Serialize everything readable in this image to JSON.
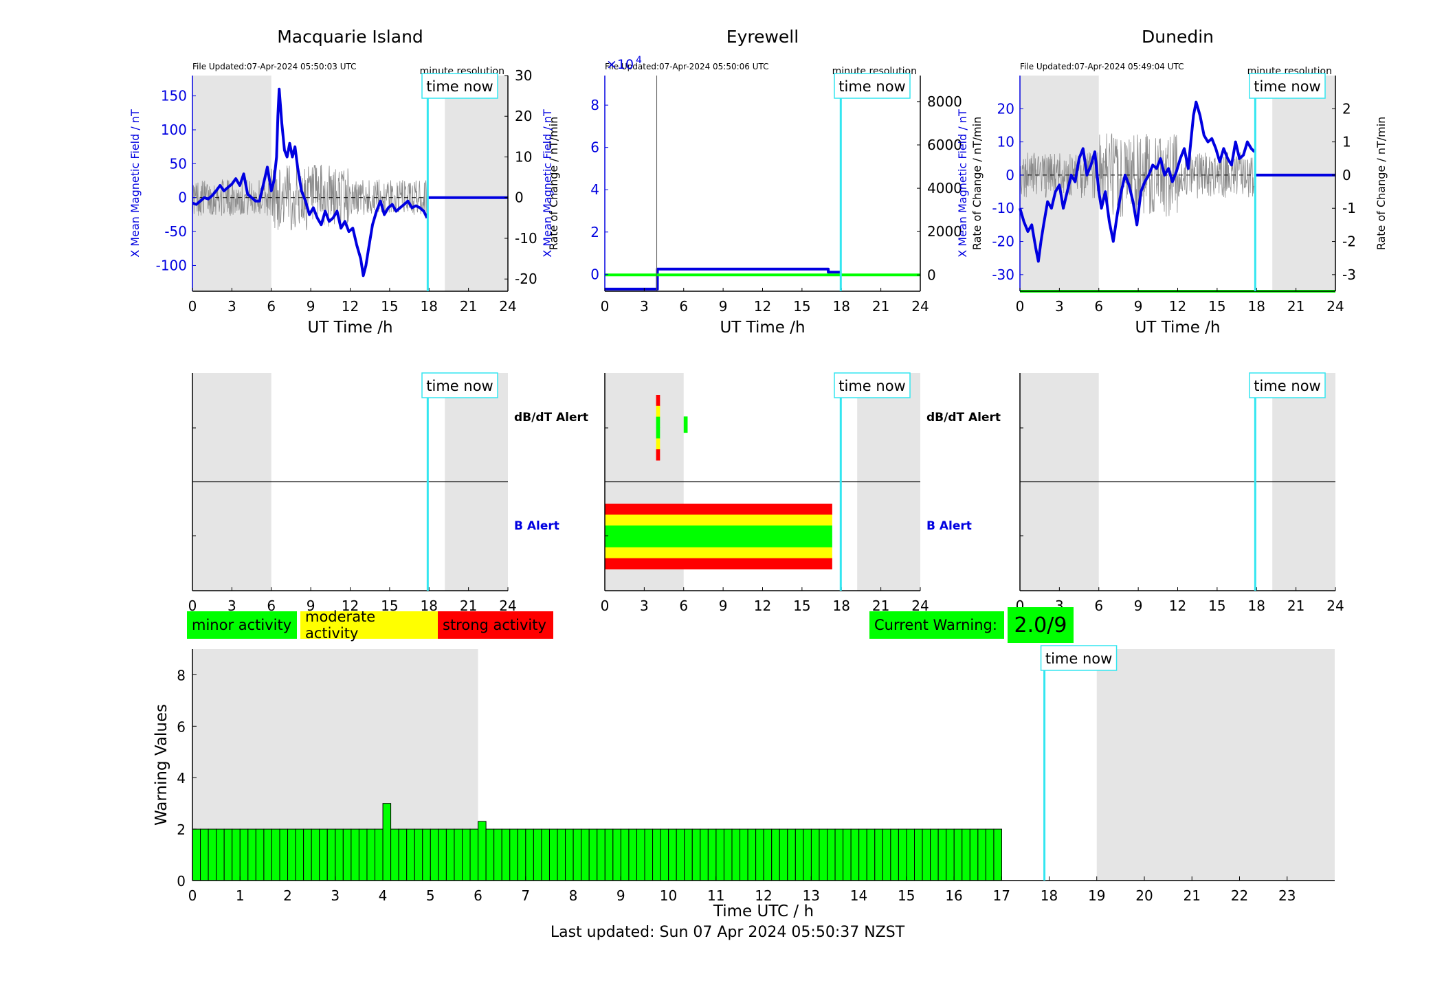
{
  "colors": {
    "blue": "#0000e0",
    "grid_shade": "#e5e5e5",
    "cyan": "#33e6f0",
    "green": "#00ff00",
    "yellow": "#ffff00",
    "red": "#ff0000",
    "gray_trace": "#8a8a8a"
  },
  "common": {
    "time_now_label": "time now",
    "time_now_hour": 17.9,
    "minute_resolution": "minute resolution",
    "x_ticks": [
      "0",
      "3",
      "6",
      "9",
      "12",
      "15",
      "18",
      "21",
      "24"
    ],
    "x_label": "UT Time /h",
    "y_left_label": "X Mean Magnetic Field / nT",
    "y_right_label": "Rate of Change / nT/min",
    "dbdt_label": "dB/dT Alert",
    "b_label": "B Alert"
  },
  "legend": {
    "minor": "minor activity",
    "moderate": "moderate activity",
    "strong": "strong activity",
    "current_warning_label": "Current Warning:",
    "current_warning_value": "2.0/9"
  },
  "footer": "Last updated: Sun 07 Apr 2024 05:50:37 NZST",
  "chart_data": [
    {
      "type": "line",
      "title": "Macquarie Island",
      "file_updated": "File Updated:07-Apr-2024 05:50:03 UTC",
      "xlim": [
        0,
        24
      ],
      "ylim_left": [
        -138,
        180
      ],
      "ylim_right": [
        -23,
        30
      ],
      "y_left_ticks": [
        "150",
        "100",
        "50",
        "0",
        "-50",
        "-100"
      ],
      "y_right_ticks": [
        "30",
        "20",
        "10",
        "0",
        "-10",
        "-20"
      ],
      "shaded_hours": [
        [
          0,
          6
        ],
        [
          19.2,
          24
        ]
      ],
      "series": [
        {
          "axis": "left",
          "x": [
            0,
            0.3,
            0.6,
            0.9,
            1.2,
            1.5,
            1.8,
            2.1,
            2.4,
            2.7,
            3.0,
            3.3,
            3.6,
            3.9,
            4.2,
            4.5,
            4.8,
            5.1,
            5.4,
            5.7,
            6.0,
            6.2,
            6.4,
            6.5,
            6.6,
            6.8,
            7.0,
            7.2,
            7.4,
            7.6,
            7.8,
            8.0,
            8.3,
            8.6,
            8.9,
            9.2,
            9.5,
            9.8,
            10.1,
            10.4,
            10.7,
            11.0,
            11.3,
            11.6,
            11.9,
            12.2,
            12.5,
            12.8,
            13.0,
            13.2,
            13.4,
            13.7,
            14.0,
            14.3,
            14.6,
            14.9,
            15.2,
            15.5,
            15.8,
            16.1,
            16.4,
            16.7,
            17.0,
            17.3,
            17.6,
            17.85
          ],
          "y": [
            -8,
            -10,
            -5,
            0,
            -2,
            3,
            10,
            18,
            10,
            15,
            20,
            28,
            18,
            35,
            5,
            0,
            -5,
            -5,
            20,
            45,
            10,
            25,
            60,
            120,
            160,
            110,
            70,
            60,
            80,
            60,
            75,
            45,
            10,
            -5,
            -25,
            -15,
            -30,
            -40,
            -20,
            -35,
            -30,
            -20,
            -45,
            -35,
            -50,
            -45,
            -70,
            -90,
            -115,
            -100,
            -75,
            -40,
            -20,
            -5,
            -25,
            -15,
            -10,
            -20,
            -15,
            -10,
            -5,
            -15,
            -12,
            -15,
            -20,
            -30
          ]
        },
        {
          "axis": "left",
          "x": [
            17.85,
            24
          ],
          "y": [
            0,
            0
          ]
        }
      ],
      "rate_series": {
        "axis": "right",
        "x_range": [
          0,
          17.85
        ],
        "amplitude": 4.5
      }
    },
    {
      "type": "line",
      "title": "Eyrewell",
      "file_updated": "File Updated:07-Apr-2024 05:50:06 UTC",
      "y_exponent": "×10",
      "y_exponent_power": "4",
      "xlim": [
        0,
        24
      ],
      "ylim_left": [
        -0.8,
        9.4
      ],
      "ylim_right": [
        -750,
        9200
      ],
      "y_left_ticks": [
        "8",
        "6",
        "4",
        "2",
        "0"
      ],
      "y_right_ticks": [
        "8000",
        "6000",
        "4000",
        "2000",
        "0"
      ],
      "shaded_hours": [],
      "series": [
        {
          "axis": "left",
          "x": [
            0,
            4,
            4,
            17,
            17,
            17.9
          ],
          "y": [
            -0.7,
            -0.7,
            0.25,
            0.25,
            0.1,
            0.1
          ]
        },
        {
          "axis": "right",
          "x": [
            0,
            24
          ],
          "y": [
            0,
            0
          ]
        }
      ]
    },
    {
      "type": "line",
      "title": "Dunedin",
      "file_updated": "File Updated:07-Apr-2024 05:49:04 UTC",
      "xlim": [
        0,
        24
      ],
      "ylim_left": [
        -35,
        30
      ],
      "ylim_right": [
        -3.5,
        3.0
      ],
      "y_left_ticks": [
        "20",
        "10",
        "0",
        "-10",
        "-20",
        "-30"
      ],
      "y_right_ticks": [
        "2",
        "1",
        "0",
        "-1",
        "-2",
        "-3"
      ],
      "shaded_hours": [
        [
          0,
          6
        ],
        [
          19.2,
          24
        ]
      ],
      "series": [
        {
          "axis": "left",
          "x": [
            0,
            0.3,
            0.6,
            0.9,
            1.2,
            1.4,
            1.6,
            1.8,
            2.1,
            2.4,
            2.7,
            3.0,
            3.3,
            3.6,
            3.9,
            4.2,
            4.5,
            4.8,
            5.1,
            5.4,
            5.7,
            6.0,
            6.2,
            6.5,
            6.8,
            7.1,
            7.4,
            7.7,
            8.0,
            8.3,
            8.6,
            8.9,
            9.2,
            9.5,
            9.8,
            10.1,
            10.4,
            10.7,
            11.0,
            11.3,
            11.6,
            11.9,
            12.2,
            12.5,
            12.8,
            13.0,
            13.2,
            13.4,
            13.7,
            14.0,
            14.3,
            14.6,
            14.9,
            15.2,
            15.5,
            15.8,
            16.1,
            16.4,
            16.7,
            17.0,
            17.3,
            17.6,
            17.85
          ],
          "y": [
            -10,
            -14,
            -17,
            -15,
            -22,
            -26,
            -20,
            -15,
            -8,
            -10,
            -5,
            -3,
            -10,
            -5,
            0,
            -2,
            5,
            8,
            0,
            3,
            7,
            -5,
            -10,
            -5,
            -14,
            -20,
            -12,
            -5,
            0,
            -3,
            -8,
            -15,
            -5,
            -2,
            0,
            3,
            2,
            5,
            0,
            2,
            -2,
            1,
            5,
            8,
            2,
            10,
            18,
            22,
            18,
            12,
            10,
            11,
            8,
            4,
            8,
            5,
            3,
            10,
            5,
            6,
            10,
            8,
            7
          ]
        },
        {
          "axis": "left",
          "x": [
            17.85,
            24
          ],
          "y": [
            0,
            0
          ]
        },
        {
          "axis": "right",
          "x": [
            0,
            24
          ],
          "y": [
            -3.5,
            -3.5
          ]
        }
      ],
      "rate_series": {
        "axis": "right",
        "x_range": [
          0,
          17.85
        ],
        "amplitude": 0.7
      }
    },
    {
      "type": "table",
      "title": "",
      "panel": "alerts-macquarie",
      "shaded_hours": [
        [
          0,
          6
        ],
        [
          19.2,
          24
        ]
      ],
      "dbdt_bars": [],
      "b_bars": []
    },
    {
      "type": "table",
      "title": "",
      "panel": "alerts-eyrewell",
      "shaded_hours": [
        [
          0,
          6
        ],
        [
          19.2,
          24
        ]
      ],
      "dbdt_bars": [
        {
          "x0": 3.9,
          "x1": 4.2,
          "levels": [
            "red",
            "yellow",
            "green",
            "green",
            "yellow",
            "red"
          ]
        },
        {
          "x0": 6.0,
          "x1": 6.3,
          "levels": [
            "green"
          ]
        }
      ],
      "b_bars": [
        {
          "x0": 0,
          "x1": 17.3,
          "levels": [
            "red",
            "yellow",
            "green",
            "green",
            "yellow",
            "red"
          ]
        }
      ]
    },
    {
      "type": "table",
      "title": "",
      "panel": "alerts-dunedin",
      "shaded_hours": [
        [
          0,
          6
        ],
        [
          19.2,
          24
        ]
      ],
      "dbdt_bars": [],
      "b_bars": []
    },
    {
      "type": "bar",
      "title": "",
      "xlabel": "Time UTC / h",
      "ylabel": "Warning Values",
      "xlim": [
        0,
        24
      ],
      "ylim": [
        0,
        9
      ],
      "x_ticks": [
        "0",
        "1",
        "2",
        "3",
        "4",
        "5",
        "6",
        "7",
        "8",
        "9",
        "10",
        "11",
        "12",
        "13",
        "14",
        "15",
        "16",
        "17",
        "18",
        "19",
        "20",
        "21",
        "22",
        "23"
      ],
      "y_ticks": [
        "0",
        "2",
        "4",
        "6",
        "8"
      ],
      "shaded_hours": [
        [
          0,
          6
        ],
        [
          19,
          24
        ]
      ],
      "bar_width_hours": 0.1667,
      "bar_start": 0,
      "bar_end": 17,
      "default_value": 2,
      "overrides": [
        {
          "start": 4.0,
          "value": 3
        },
        {
          "start": 6.0,
          "value": 2.3
        }
      ]
    }
  ]
}
